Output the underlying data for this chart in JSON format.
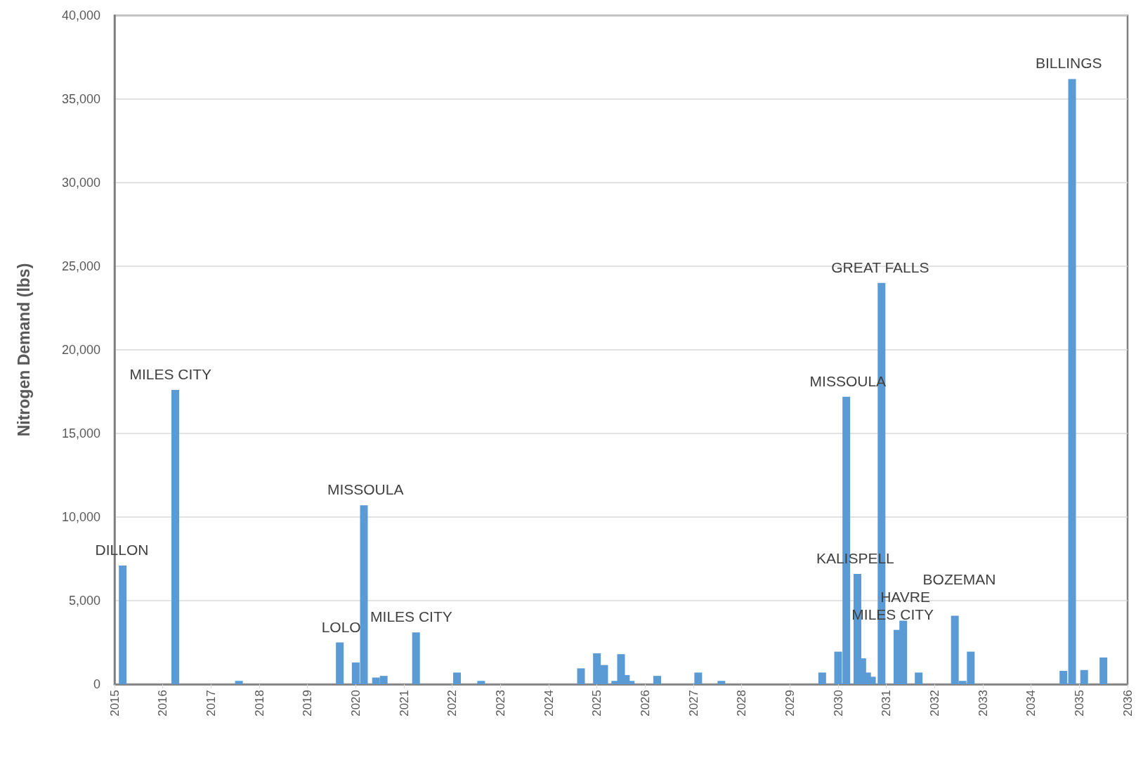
{
  "chart_data": {
    "type": "bar",
    "ylabel": "Nitrogen Demand (lbs)",
    "x": [
      2015.17,
      2016.26,
      2017.58,
      2019.67,
      2020.0,
      2020.17,
      2020.42,
      2020.58,
      2021.25,
      2022.1,
      2022.6,
      2024.67,
      2025.0,
      2025.15,
      2025.38,
      2025.5,
      2025.6,
      2025.7,
      2026.25,
      2027.1,
      2027.58,
      2029.67,
      2030.0,
      2030.17,
      2030.4,
      2030.5,
      2030.6,
      2030.7,
      2030.9,
      2031.23,
      2031.35,
      2031.67,
      2032.42,
      2032.58,
      2032.75,
      2034.67,
      2034.85,
      2035.1,
      2035.5
    ],
    "values": [
      7100,
      17600,
      200,
      2500,
      1300,
      10700,
      400,
      500,
      3100,
      700,
      200,
      950,
      1850,
      1150,
      200,
      1800,
      550,
      200,
      500,
      700,
      200,
      700,
      1950,
      17200,
      6600,
      1550,
      700,
      450,
      24000,
      3250,
      3800,
      700,
      4100,
      200,
      1950,
      800,
      36200,
      850,
      1600
    ],
    "color": "#5b9bd5",
    "xlim": [
      2015,
      2036
    ],
    "xticks": [
      2015,
      2016,
      2017,
      2018,
      2019,
      2020,
      2021,
      2022,
      2023,
      2024,
      2025,
      2026,
      2027,
      2028,
      2029,
      2030,
      2031,
      2032,
      2033,
      2034,
      2035,
      2036
    ],
    "ylim": [
      0,
      40000
    ],
    "yticks": [
      {
        "value": 0,
        "label": "0"
      },
      {
        "value": 5000,
        "label": "5,000"
      },
      {
        "value": 10000,
        "label": "10,000"
      },
      {
        "value": 15000,
        "label": "15,000"
      },
      {
        "value": 20000,
        "label": "20,000"
      },
      {
        "value": 25000,
        "label": "25,000"
      },
      {
        "value": 30000,
        "label": "30,000"
      },
      {
        "value": 35000,
        "label": "35,000"
      },
      {
        "value": 40000,
        "label": "40,000"
      }
    ],
    "grid": "y",
    "annotations": [
      {
        "text": "DILLON",
        "x": 2015.17,
        "y": 7100
      },
      {
        "text": "MILES CITY",
        "x": 2016.26,
        "y": 17600
      },
      {
        "text": "LOLO",
        "x": 2019.67,
        "y": 2500
      },
      {
        "text": "MISSOULA",
        "x": 2020.17,
        "y": 10700
      },
      {
        "text": "MILES CITY",
        "x": 2021.25,
        "y": 3100
      },
      {
        "text": "MISSOULA",
        "x": 2030.17,
        "y": 17200
      },
      {
        "text": "KALISPELL",
        "x": 2030.4,
        "y": 6600
      },
      {
        "text": "GREAT FALLS",
        "x": 2030.9,
        "y": 24000
      },
      {
        "text": "MILES CITY",
        "x": 2031.23,
        "y": 3250
      },
      {
        "text": "HAVRE",
        "x": 2031.35,
        "y": 3800
      },
      {
        "text": "BOZEMAN",
        "x": 2032.42,
        "y": 4100
      },
      {
        "text": "BILLINGS",
        "x": 2034.85,
        "y": 36200
      }
    ]
  }
}
